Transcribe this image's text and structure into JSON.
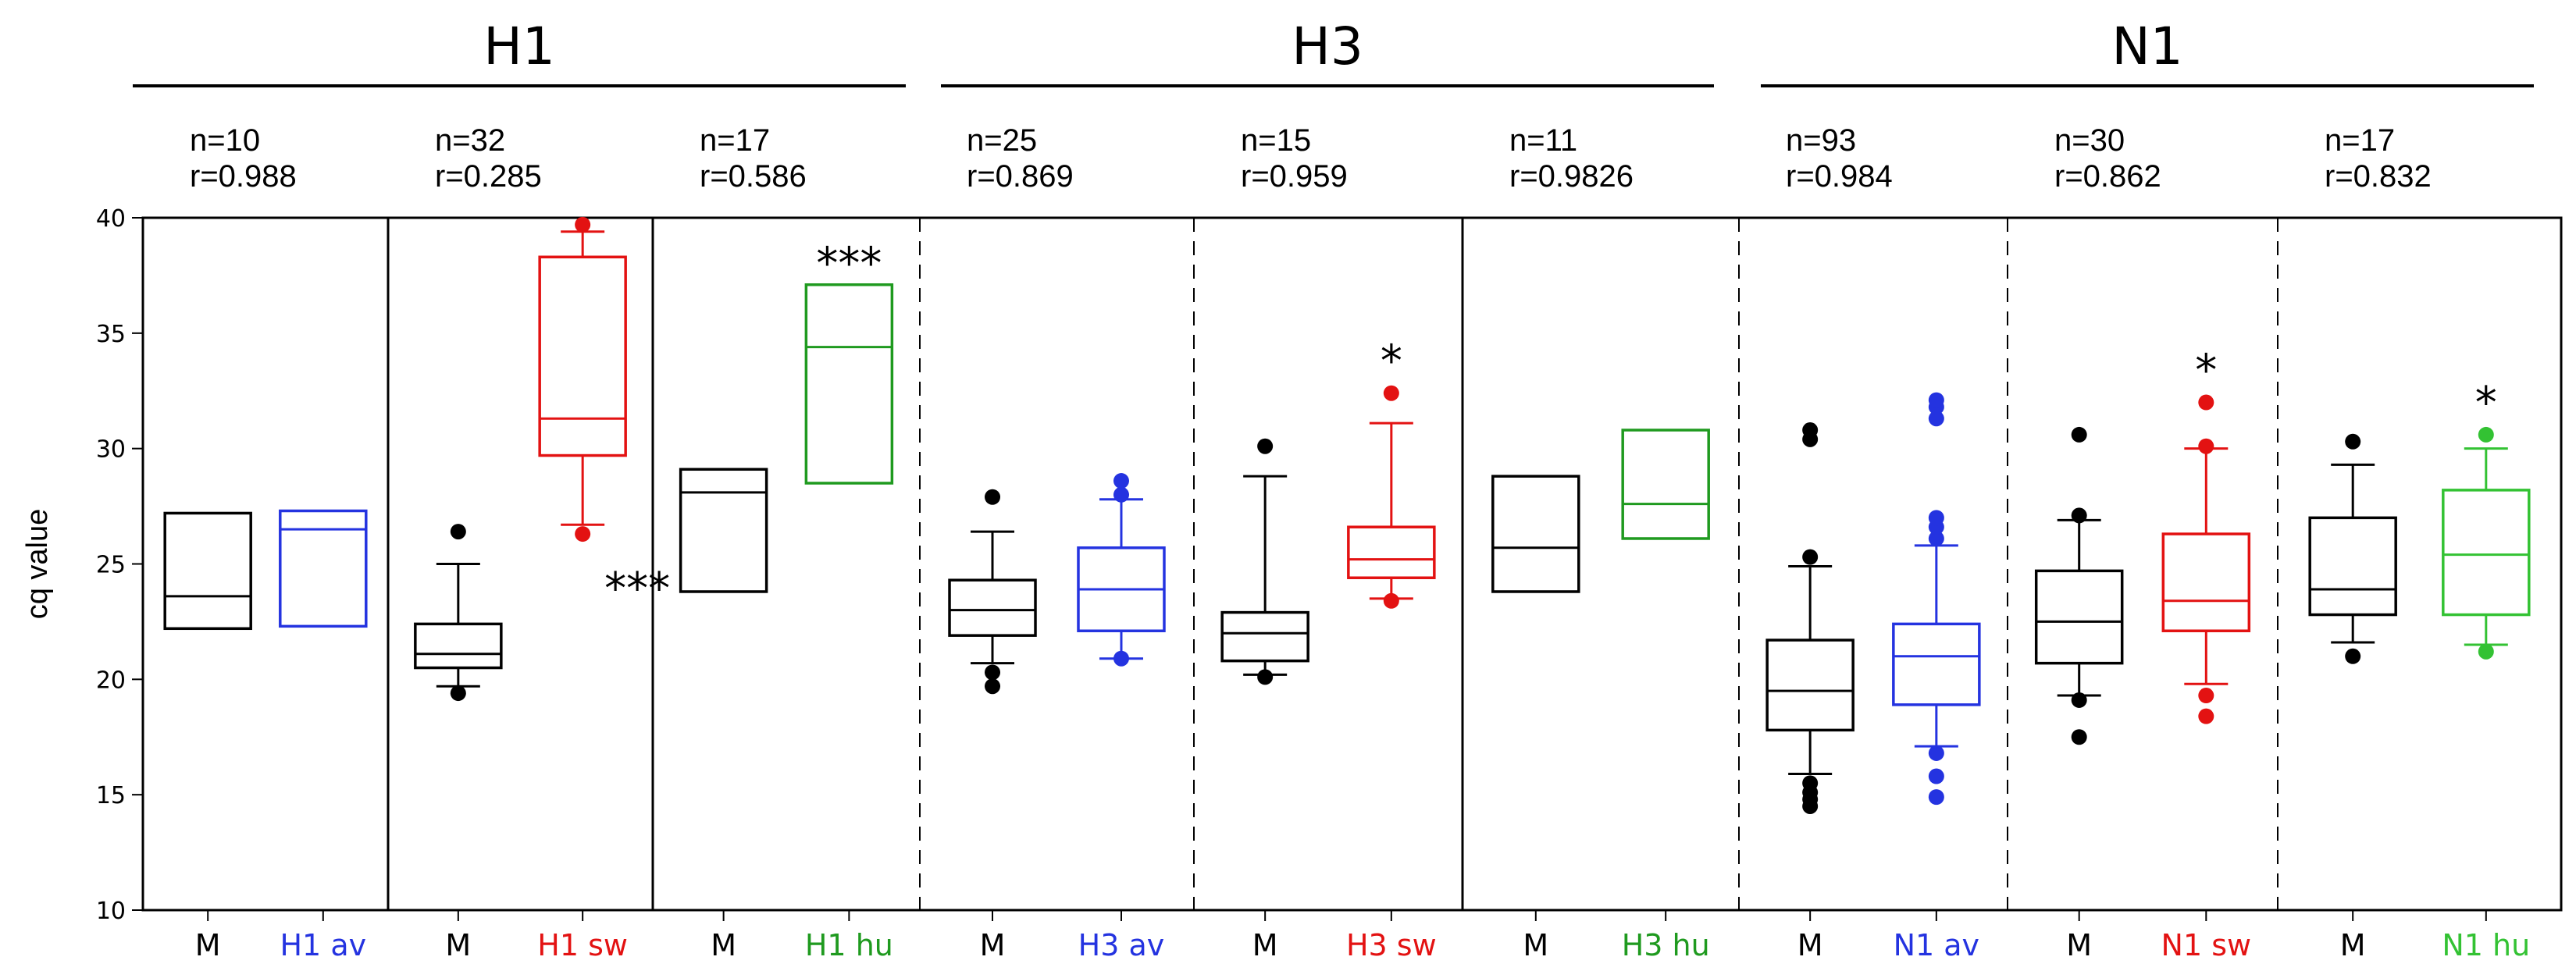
{
  "chart_data": {
    "type": "box",
    "ylabel": "cq value",
    "ylim": [
      10,
      40
    ],
    "yticks": [
      10,
      15,
      20,
      25,
      30,
      35,
      40
    ],
    "colors": {
      "M": "#000000",
      "av": "#2433e0",
      "sw": "#e31212",
      "hu": "#1f9a1f",
      "hu_light": "#33c233"
    },
    "groups": [
      {
        "title": "H1",
        "span": [
          0,
          2
        ]
      },
      {
        "title": "H3",
        "span": [
          3,
          5
        ]
      },
      {
        "title": "N1",
        "span": [
          6,
          8
        ]
      }
    ],
    "panels": [
      {
        "n": "n=10",
        "r": "r=0.988",
        "significance": "",
        "boxes": [
          {
            "label": "M",
            "color": "#000000",
            "q1": 22.2,
            "median": 23.6,
            "q3": 27.2,
            "whisker_low": null,
            "whisker_high": null,
            "outliers": []
          },
          {
            "label": "H1 av",
            "color": "#2433e0",
            "q1": 22.3,
            "median": 26.5,
            "q3": 27.3,
            "whisker_low": null,
            "whisker_high": null,
            "outliers": []
          }
        ]
      },
      {
        "n": "n=32",
        "r": "r=0.285",
        "significance": "***",
        "boxes": [
          {
            "label": "M",
            "color": "#000000",
            "q1": 20.5,
            "median": 21.1,
            "q3": 22.4,
            "whisker_low": 19.7,
            "whisker_high": 25.0,
            "outliers": [
              19.4,
              26.4
            ]
          },
          {
            "label": "H1 sw",
            "color": "#e31212",
            "q1": 29.7,
            "median": 31.3,
            "q3": 38.3,
            "whisker_low": 26.7,
            "whisker_high": 39.4,
            "outliers": [
              26.3,
              39.7
            ]
          }
        ]
      },
      {
        "n": "n=17",
        "r": "r=0.586",
        "significance": "***",
        "boxes": [
          {
            "label": "M",
            "color": "#000000",
            "q1": 23.8,
            "median": 28.1,
            "q3": 29.1,
            "whisker_low": null,
            "whisker_high": null,
            "outliers": []
          },
          {
            "label": "H1 hu",
            "color": "#1f9a1f",
            "q1": 28.5,
            "median": 34.4,
            "q3": 37.1,
            "whisker_low": null,
            "whisker_high": null,
            "outliers": []
          }
        ]
      },
      {
        "n": "n=25",
        "r": "r=0.869",
        "significance": "",
        "boxes": [
          {
            "label": "M",
            "color": "#000000",
            "q1": 21.9,
            "median": 23.0,
            "q3": 24.3,
            "whisker_low": 20.7,
            "whisker_high": 26.4,
            "outliers": [
              19.7,
              20.3,
              27.9
            ]
          },
          {
            "label": "H3 av",
            "color": "#2433e0",
            "q1": 22.1,
            "median": 23.9,
            "q3": 25.7,
            "whisker_low": 20.9,
            "whisker_high": 27.8,
            "outliers": [
              20.9,
              28.0,
              28.6
            ]
          }
        ]
      },
      {
        "n": "n=15",
        "r": "r=0.959",
        "significance": "*",
        "boxes": [
          {
            "label": "M",
            "color": "#000000",
            "q1": 20.8,
            "median": 22.0,
            "q3": 22.9,
            "whisker_low": 20.2,
            "whisker_high": 28.8,
            "outliers": [
              20.1,
              30.1
            ]
          },
          {
            "label": "H3 sw",
            "color": "#e31212",
            "q1": 24.4,
            "median": 25.2,
            "q3": 26.6,
            "whisker_low": 23.5,
            "whisker_high": 31.1,
            "outliers": [
              23.4,
              32.4
            ]
          }
        ]
      },
      {
        "n": "n=11",
        "r": "r=0.9826",
        "significance": "",
        "boxes": [
          {
            "label": "M",
            "color": "#000000",
            "q1": 23.8,
            "median": 25.7,
            "q3": 28.8,
            "whisker_low": null,
            "whisker_high": null,
            "outliers": []
          },
          {
            "label": "H3 hu",
            "color": "#1f9a1f",
            "q1": 26.1,
            "median": 27.6,
            "q3": 30.8,
            "whisker_low": null,
            "whisker_high": null,
            "outliers": []
          }
        ]
      },
      {
        "n": "n=93",
        "r": "r=0.984",
        "significance": "",
        "boxes": [
          {
            "label": "M",
            "color": "#000000",
            "q1": 17.8,
            "median": 19.5,
            "q3": 21.7,
            "whisker_low": 15.9,
            "whisker_high": 24.9,
            "outliers": [
              14.5,
              14.8,
              15.1,
              15.5,
              25.3,
              30.4,
              30.8
            ]
          },
          {
            "label": "N1 av",
            "color": "#2433e0",
            "q1": 18.9,
            "median": 21.0,
            "q3": 22.4,
            "whisker_low": 17.1,
            "whisker_high": 25.8,
            "outliers": [
              14.9,
              15.8,
              16.8,
              26.1,
              26.6,
              27.0,
              31.3,
              31.8,
              32.1
            ]
          }
        ]
      },
      {
        "n": "n=30",
        "r": "r=0.862",
        "significance": "*",
        "boxes": [
          {
            "label": "M",
            "color": "#000000",
            "q1": 20.7,
            "median": 22.5,
            "q3": 24.7,
            "whisker_low": 19.3,
            "whisker_high": 26.9,
            "outliers": [
              17.5,
              19.1,
              27.1,
              30.6
            ]
          },
          {
            "label": "N1 sw",
            "color": "#e31212",
            "q1": 22.1,
            "median": 23.4,
            "q3": 26.3,
            "whisker_low": 19.8,
            "whisker_high": 30.0,
            "outliers": [
              18.4,
              19.3,
              30.1,
              32.0
            ]
          }
        ]
      },
      {
        "n": "n=17",
        "r": "r=0.832",
        "significance": "*",
        "boxes": [
          {
            "label": "M",
            "color": "#000000",
            "q1": 22.8,
            "median": 23.9,
            "q3": 27.0,
            "whisker_low": 21.6,
            "whisker_high": 29.3,
            "outliers": [
              21.0,
              30.3
            ]
          },
          {
            "label": "N1 hu",
            "color": "#33c233",
            "q1": 22.8,
            "median": 25.4,
            "q3": 28.2,
            "whisker_low": 21.5,
            "whisker_high": 30.0,
            "outliers": [
              21.2,
              30.6
            ]
          }
        ]
      }
    ]
  }
}
